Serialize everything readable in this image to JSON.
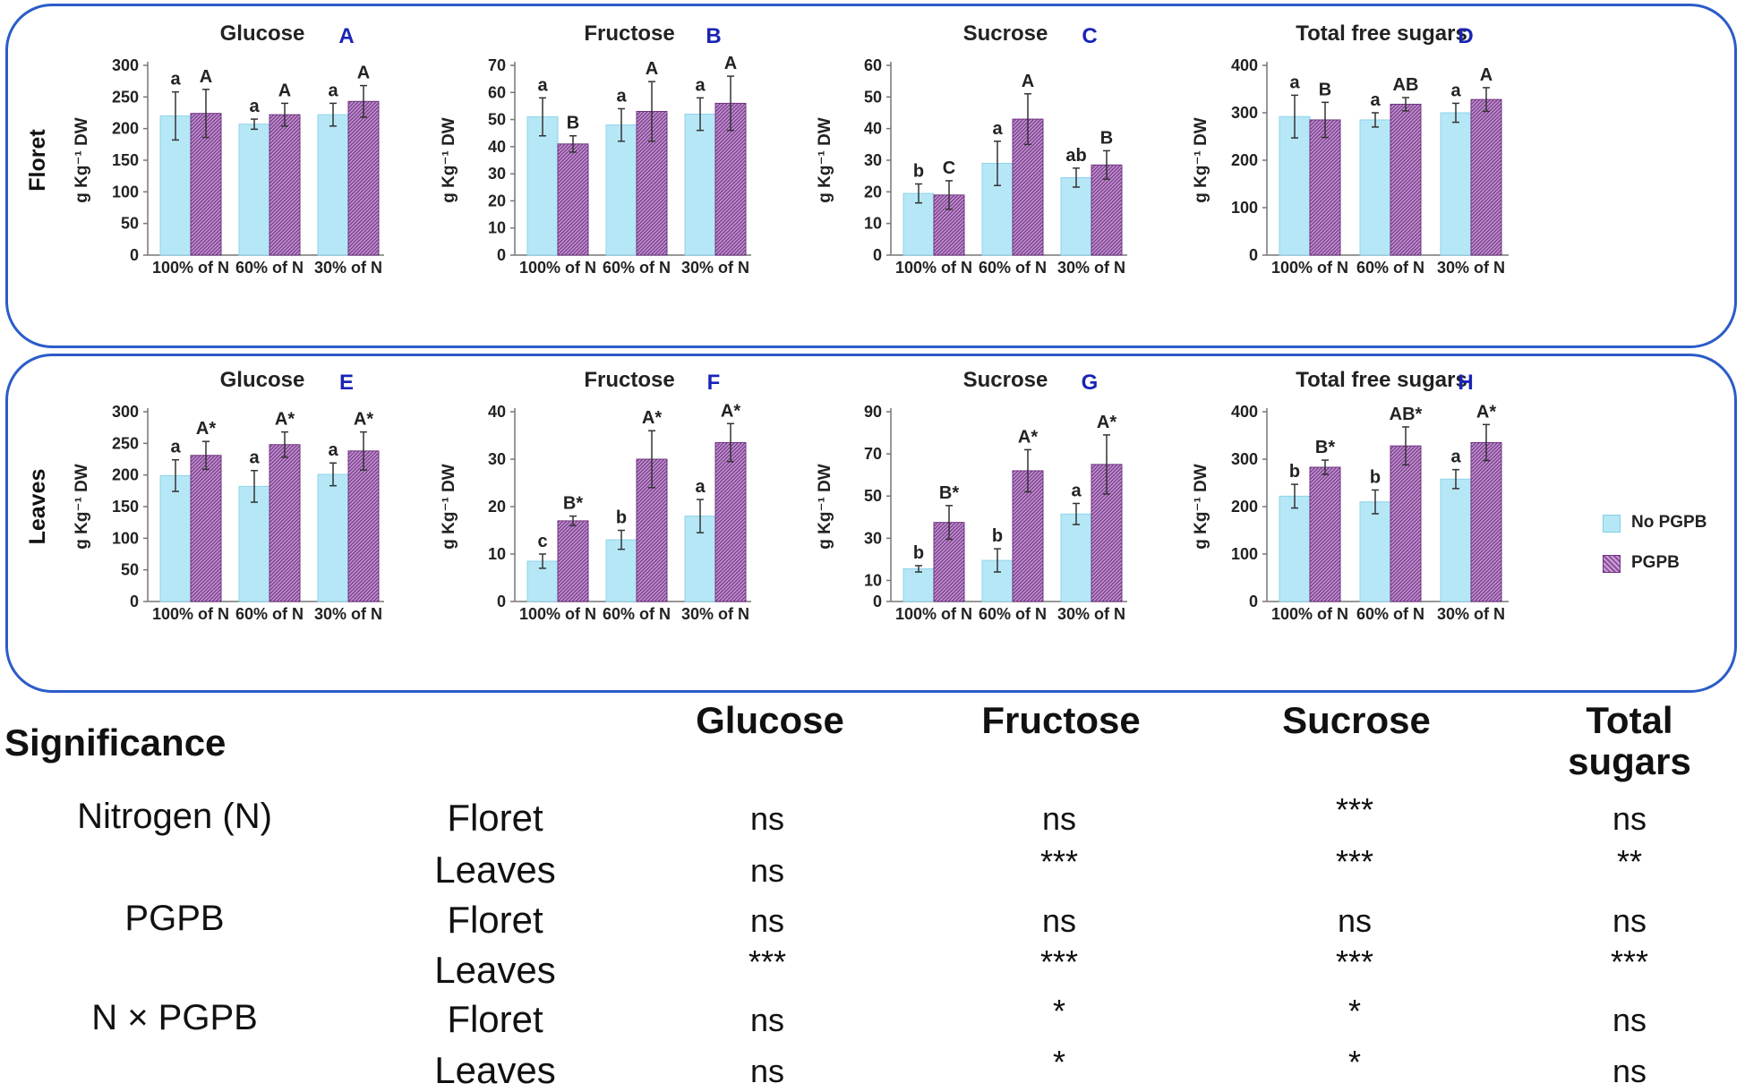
{
  "colors": {
    "frame": "#2b5cc8",
    "no_pgpb": "#b6e7f6",
    "pgpb": "#9b5aa8",
    "panel_letter": "#1a24b5"
  },
  "rows": {
    "floret": "Floret",
    "leaves": "Leaves"
  },
  "y_axis_label": "g Kg⁻¹ DW",
  "legend": [
    {
      "label": "No PGPB",
      "swatch": "no-pgpb"
    },
    {
      "label": "PGPB",
      "swatch": "pgpb"
    }
  ],
  "chart_data": [
    {
      "id": "A",
      "type": "bar",
      "title": "Glucose",
      "letter": "A",
      "row": "floret",
      "categories": [
        "100% of N",
        "60% of N",
        "30% of N"
      ],
      "ylim": [
        0,
        300
      ],
      "yticks": [
        0,
        50,
        100,
        150,
        200,
        250,
        300
      ],
      "series": [
        {
          "name": "No PGPB",
          "values": [
            220,
            207,
            222
          ],
          "errors": [
            38,
            8,
            18
          ],
          "labels": [
            "a",
            "a",
            "a"
          ]
        },
        {
          "name": "PGPB",
          "values": [
            224,
            222,
            243
          ],
          "errors": [
            38,
            18,
            25
          ],
          "labels": [
            "A",
            "A",
            "A"
          ]
        }
      ]
    },
    {
      "id": "B",
      "type": "bar",
      "title": "Fructose",
      "letter": "B",
      "row": "floret",
      "categories": [
        "100% of N",
        "60% of N",
        "30% of N"
      ],
      "ylim": [
        0,
        70
      ],
      "yticks": [
        0,
        10,
        20,
        30,
        40,
        50,
        60,
        70
      ],
      "series": [
        {
          "name": "No PGPB",
          "values": [
            51,
            48,
            52
          ],
          "errors": [
            7,
            6,
            6
          ],
          "labels": [
            "a",
            "a",
            "a"
          ]
        },
        {
          "name": "PGPB",
          "values": [
            41,
            53,
            56
          ],
          "errors": [
            3,
            11,
            10
          ],
          "labels": [
            "B",
            "A",
            "A"
          ]
        }
      ]
    },
    {
      "id": "C",
      "type": "bar",
      "title": "Sucrose",
      "letter": "C",
      "row": "floret",
      "categories": [
        "100% of N",
        "60% of N",
        "30% of N"
      ],
      "ylim": [
        0,
        60
      ],
      "yticks": [
        0,
        10,
        20,
        30,
        40,
        50,
        60
      ],
      "series": [
        {
          "name": "No PGPB",
          "values": [
            19.5,
            29,
            24.5
          ],
          "errors": [
            3,
            7,
            3
          ],
          "labels": [
            "b",
            "a",
            "ab"
          ]
        },
        {
          "name": "PGPB",
          "values": [
            19,
            43,
            28.5
          ],
          "errors": [
            4.5,
            8,
            4.5
          ],
          "labels": [
            "C",
            "A",
            "B"
          ]
        }
      ]
    },
    {
      "id": "D",
      "type": "bar",
      "title": "Total free sugars",
      "letter": "D",
      "row": "floret",
      "categories": [
        "100% of N",
        "60% of N",
        "30% of N"
      ],
      "ylim": [
        0,
        400
      ],
      "yticks": [
        0,
        100,
        200,
        300,
        400
      ],
      "series": [
        {
          "name": "No PGPB",
          "values": [
            292,
            285,
            300
          ],
          "errors": [
            45,
            15,
            20
          ],
          "labels": [
            "a",
            "a",
            "a"
          ]
        },
        {
          "name": "PGPB",
          "values": [
            285,
            318,
            328
          ],
          "errors": [
            37,
            14,
            25
          ],
          "labels": [
            "B",
            "AB",
            "A"
          ]
        }
      ]
    },
    {
      "id": "E",
      "type": "bar",
      "title": "Glucose",
      "letter": "E",
      "row": "leaves",
      "categories": [
        "100% of N",
        "60% of N",
        "30% of N"
      ],
      "ylim": [
        0,
        300
      ],
      "yticks": [
        0,
        50,
        100,
        150,
        200,
        250,
        300
      ],
      "series": [
        {
          "name": "No PGPB",
          "values": [
            199,
            182,
            201
          ],
          "errors": [
            25,
            25,
            18
          ],
          "labels": [
            "a",
            "a",
            "a"
          ]
        },
        {
          "name": "PGPB",
          "values": [
            231,
            248,
            238
          ],
          "errors": [
            22,
            20,
            30
          ],
          "labels": [
            "A*",
            "A*",
            "A*"
          ]
        }
      ]
    },
    {
      "id": "F",
      "type": "bar",
      "title": "Fructose",
      "letter": "F",
      "row": "leaves",
      "categories": [
        "100% of N",
        "60% of N",
        "30% of N"
      ],
      "ylim": [
        0,
        40
      ],
      "yticks": [
        0,
        10,
        20,
        30,
        40
      ],
      "series": [
        {
          "name": "No PGPB",
          "values": [
            8.5,
            13,
            18
          ],
          "errors": [
            1.5,
            2,
            3.5
          ],
          "labels": [
            "c",
            "b",
            "a"
          ]
        },
        {
          "name": "PGPB",
          "values": [
            17,
            30,
            33.5
          ],
          "errors": [
            1,
            6,
            4
          ],
          "labels": [
            "B*",
            "A*",
            "A*"
          ]
        }
      ]
    },
    {
      "id": "G",
      "type": "bar",
      "title": "Sucrose",
      "letter": "G",
      "row": "leaves",
      "categories": [
        "100% of N",
        "60% of N",
        "30% of N"
      ],
      "ylim": [
        0,
        90
      ],
      "yticks": [
        0,
        10,
        30,
        50,
        70,
        90
      ],
      "series": [
        {
          "name": "No PGPB",
          "values": [
            15.5,
            19.5,
            41.5
          ],
          "errors": [
            1.5,
            5.5,
            5
          ],
          "labels": [
            "b",
            "b",
            "a"
          ]
        },
        {
          "name": "PGPB",
          "values": [
            37.5,
            62,
            65
          ],
          "errors": [
            8,
            10,
            14
          ],
          "labels": [
            "B*",
            "A*",
            "A*"
          ]
        }
      ]
    },
    {
      "id": "H",
      "type": "bar",
      "title": "Total free sugars",
      "letter": "H",
      "row": "leaves",
      "categories": [
        "100% of N",
        "60% of N",
        "30% of N"
      ],
      "ylim": [
        0,
        400
      ],
      "yticks": [
        0,
        100,
        200,
        300,
        400
      ],
      "series": [
        {
          "name": "No PGPB",
          "values": [
            222,
            210,
            258
          ],
          "errors": [
            25,
            25,
            20
          ],
          "labels": [
            "b",
            "b",
            "a"
          ]
        },
        {
          "name": "PGPB",
          "values": [
            283,
            328,
            335
          ],
          "errors": [
            15,
            40,
            38
          ],
          "labels": [
            "B*",
            "AB*",
            "A*"
          ]
        }
      ]
    }
  ],
  "significance": {
    "title": "Significance",
    "headers": [
      "Glucose",
      "Fructose",
      "Sucrose",
      "Total\nsugars"
    ],
    "factors": [
      "Nitrogen (N)",
      "PGPB",
      "N × PGPB"
    ],
    "tissues": [
      "Floret",
      "Leaves"
    ],
    "rows": [
      {
        "factor": "Nitrogen (N)",
        "tissue": "Floret",
        "values": [
          "ns",
          "ns",
          "***",
          "ns"
        ]
      },
      {
        "factor": "Nitrogen (N)",
        "tissue": "Leaves",
        "values": [
          "ns",
          "***",
          "***",
          "**"
        ]
      },
      {
        "factor": "PGPB",
        "tissue": "Floret",
        "values": [
          "ns",
          "ns",
          "ns",
          "ns"
        ]
      },
      {
        "factor": "PGPB",
        "tissue": "Leaves",
        "values": [
          "***",
          "***",
          "***",
          "***"
        ]
      },
      {
        "factor": "N × PGPB",
        "tissue": "Floret",
        "values": [
          "ns",
          "*",
          "*",
          "ns"
        ]
      },
      {
        "factor": "N × PGPB",
        "tissue": "Leaves",
        "values": [
          "ns",
          "*",
          "*",
          "ns"
        ]
      }
    ]
  }
}
